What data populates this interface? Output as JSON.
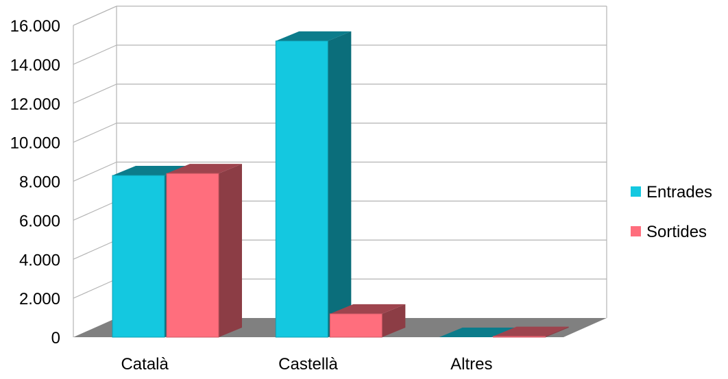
{
  "chart_data": {
    "type": "bar",
    "categories": [
      "Català",
      "Castellà",
      "Altres"
    ],
    "series": [
      {
        "name": "Entrades",
        "values": [
          8300,
          15200,
          0
        ],
        "color": "#14c8e0"
      },
      {
        "name": "Sortides",
        "values": [
          8400,
          1200,
          50
        ],
        "color": "#ff6e7d"
      }
    ],
    "y_ticks": [
      "0",
      "2.000",
      "4.000",
      "6.000",
      "8.000",
      "10.000",
      "12.000",
      "14.000",
      "16.000"
    ],
    "ylim": [
      0,
      16000
    ],
    "grid": true,
    "legend": "right",
    "floor_color": "#808080",
    "grid_color": "#b3b3b3"
  }
}
